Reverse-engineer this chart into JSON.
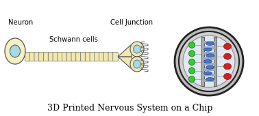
{
  "title": "3D Printed Nervous System on a Chip",
  "title_fontsize": 9,
  "bg_color": "#ffffff",
  "neuron_body_color": "#f5f0c0",
  "neuron_nucleus_color": "#a8d8e8",
  "schwann_cell_color": "#f0e8b0",
  "axon_color": "#c8b870",
  "outline_color": "#555555",
  "green_dot_color": "#33cc33",
  "red_dot_color": "#cc2222",
  "blue_cell_color": "#4477cc",
  "label_neuron": "Neuron",
  "label_schwann": "Schwann cells",
  "label_junction": "Cell Junction",
  "fig_w": 3.78,
  "fig_h": 1.7,
  "dpi": 100
}
